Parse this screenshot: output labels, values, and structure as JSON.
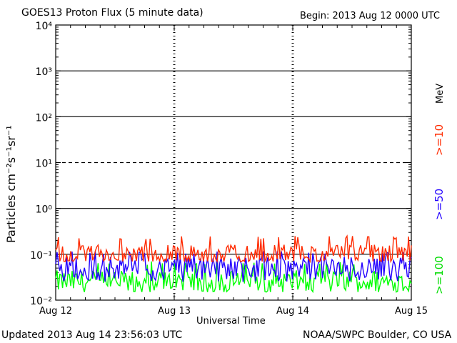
{
  "header": {
    "title": "GOES13 Proton Flux (5 minute data)",
    "begin": "Begin: 2013 Aug 12 0000 UTC"
  },
  "footer": {
    "updated": "Updated 2013 Aug 14 23:56:03 UTC",
    "credit": "NOAA/SWPC Boulder, CO USA"
  },
  "chart_data": {
    "type": "line",
    "title": "GOES13 Proton Flux (5 minute data)",
    "xlabel": "Universal Time",
    "ylabel": "Particles cm⁻²s⁻¹sr⁻¹",
    "yscale": "log",
    "ylim": [
      0.01,
      10000
    ],
    "x_ticks": [
      "Aug 12",
      "Aug 13",
      "Aug 14",
      "Aug 15"
    ],
    "y_ticks": [
      "10⁻²",
      "10⁻¹",
      "10⁰",
      "10¹",
      "10²",
      "10³",
      "10⁴"
    ],
    "y_tick_values": [
      0.01,
      0.1,
      1,
      10,
      100,
      1000,
      10000
    ],
    "threshold_lines": [
      {
        "value": 0.1,
        "style": "solid",
        "color": "#000000"
      },
      {
        "value": 1,
        "style": "solid",
        "color": "#000000"
      },
      {
        "value": 10,
        "style": "dashed",
        "color": "#000000"
      },
      {
        "value": 100,
        "style": "solid",
        "color": "#000000"
      },
      {
        "value": 1000,
        "style": "solid",
        "color": "#000000"
      }
    ],
    "unit_label": "MeV",
    "series": [
      {
        "name": ">=10",
        "color": "#ff2a00",
        "typical_value": 0.1,
        "range": [
          0.07,
          0.25
        ]
      },
      {
        "name": ">=50",
        "color": "#2200ff",
        "typical_value": 0.05,
        "range": [
          0.025,
          0.12
        ]
      },
      {
        "name": ">=100",
        "color": "#00ff00",
        "typical_value": 0.025,
        "range": [
          0.015,
          0.07
        ]
      }
    ]
  }
}
